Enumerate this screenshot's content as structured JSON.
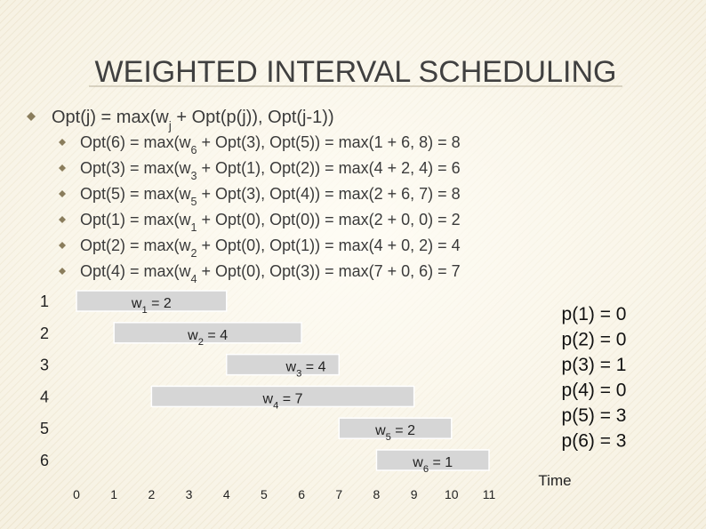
{
  "title": "WEIGHTED INTERVAL SCHEDULING",
  "main_bullet": [
    {
      "t": "Opt(j) = max(w"
    },
    {
      "sub": "j"
    },
    {
      "t": " + Opt(p(j)), Opt(j-1))"
    }
  ],
  "bullets": [
    [
      {
        "t": "Opt(6) = max(w"
      },
      {
        "sub": "6"
      },
      {
        "t": " + Opt(3), Opt(5)) = max(1 + 6, 8) = 8"
      }
    ],
    [
      {
        "t": "Opt(3) = max(w"
      },
      {
        "sub": "3"
      },
      {
        "t": " + Opt(1), Opt(2)) = max(4 + 2, 4) = 6"
      }
    ],
    [
      {
        "t": "Opt(5) = max(w"
      },
      {
        "sub": "5"
      },
      {
        "t": " + Opt(3), Opt(4)) = max(2 + 6, 7) = 8"
      }
    ],
    [
      {
        "t": "Opt(1) = max(w"
      },
      {
        "sub": "1"
      },
      {
        "t": " + Opt(0), Opt(0)) = max(2 + 0, 0) = 2"
      }
    ],
    [
      {
        "t": "Opt(2) = max(w"
      },
      {
        "sub": "2"
      },
      {
        "t": " + Opt(0), Opt(1)) = max(4 + 0, 2) = 4"
      }
    ],
    [
      {
        "t": "Opt(4) = max(w"
      },
      {
        "sub": "4"
      },
      {
        "t": " + Opt(0), Opt(3)) = max(7 + 0, 6) = 7"
      }
    ]
  ],
  "intervals": [
    {
      "row": "1",
      "start": 0,
      "end": 4,
      "label": [
        {
          "t": "w"
        },
        {
          "sub": "1"
        },
        {
          "t": " = 2"
        }
      ]
    },
    {
      "row": "2",
      "start": 1,
      "end": 6,
      "label": [
        {
          "t": "w"
        },
        {
          "sub": "2"
        },
        {
          "t": " = 4"
        }
      ]
    },
    {
      "row": "3",
      "start": 4,
      "end": 7,
      "label": [
        {
          "t": "w"
        },
        {
          "sub": "3"
        },
        {
          "t": " = 4"
        }
      ]
    },
    {
      "row": "4",
      "start": 2,
      "end": 9,
      "label": [
        {
          "t": "w"
        },
        {
          "sub": "4"
        },
        {
          "t": " = 7"
        }
      ]
    },
    {
      "row": "5",
      "start": 7,
      "end": 10,
      "label": [
        {
          "t": "w"
        },
        {
          "sub": "5"
        },
        {
          "t": " = 2"
        }
      ]
    },
    {
      "row": "6",
      "start": 8,
      "end": 11,
      "label": [
        {
          "t": "w"
        },
        {
          "sub": "6"
        },
        {
          "t": " = 1"
        }
      ]
    }
  ],
  "time_ticks": [
    0,
    1,
    2,
    3,
    4,
    5,
    6,
    7,
    8,
    9,
    10,
    11
  ],
  "time_label": "Time",
  "p_values": [
    "p(1) = 0",
    "p(2) = 0",
    "p(3) = 1",
    "p(4) = 0",
    "p(5) = 3",
    "p(6) = 3"
  ]
}
